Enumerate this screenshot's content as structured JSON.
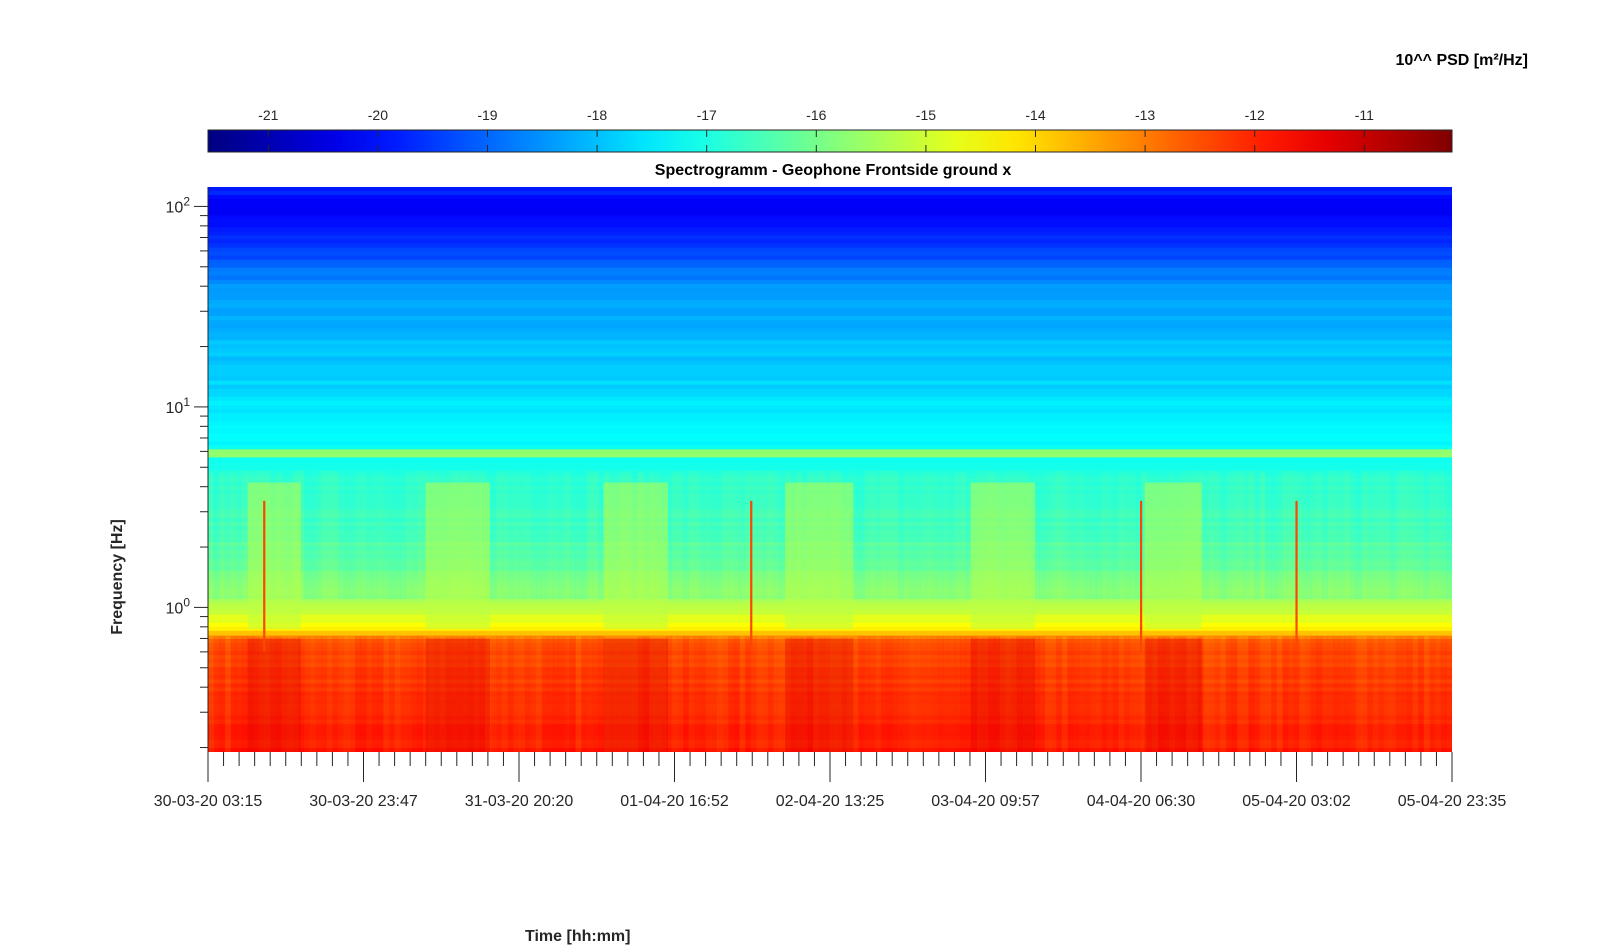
{
  "chart_data": {
    "type": "heatmap",
    "title": "Spectrogramm - Geophone Frontside ground x",
    "xlabel": "Time [hh:mm]",
    "ylabel": "Frequency [Hz]",
    "colorbar_label": "10^^ PSD [m²/Hz]",
    "colormap": "jet",
    "colorbar_position": "top",
    "color_range": [
      -21.55,
      -10.2
    ],
    "colorbar_ticks": [
      "-21",
      "-20",
      "-19",
      "-18",
      "-17",
      "-16",
      "-15",
      "-14",
      "-13",
      "-12",
      "-11"
    ],
    "y_scale": "log",
    "ylim": [
      0.19,
      125
    ],
    "y_ticks": [
      {
        "base": "10",
        "exp": "0"
      },
      {
        "base": "10",
        "exp": "1"
      },
      {
        "base": "10",
        "exp": "2"
      }
    ],
    "x_ticks": [
      "30-03-20 03:15",
      "30-03-20 23:47",
      "31-03-20 20:20",
      "01-04-20 16:52",
      "02-04-20 13:25",
      "03-04-20 09:57",
      "04-04-20 06:30",
      "05-04-20 03:02",
      "05-04-20 23:35"
    ],
    "grid": false,
    "frequency_bands": [
      {
        "hz": 125,
        "psd_log": -19.6
      },
      {
        "hz": 100,
        "psd_log": -20.3
      },
      {
        "hz": 80,
        "psd_log": -20.0
      },
      {
        "hz": 60,
        "psd_log": -19.4
      },
      {
        "hz": 40,
        "psd_log": -18.5
      },
      {
        "hz": 30,
        "psd_log": -18.3
      },
      {
        "hz": 20,
        "psd_log": -18.0
      },
      {
        "hz": 12,
        "psd_log": -17.7
      },
      {
        "hz": 8,
        "psd_log": -17.3
      },
      {
        "hz": 6.2,
        "psd_log": -17.3
      },
      {
        "hz": 5.9,
        "psd_log": -14.8
      },
      {
        "hz": 5.5,
        "psd_log": -17.2
      },
      {
        "hz": 4,
        "psd_log": -16.8
      },
      {
        "hz": 2.5,
        "psd_log": -16.5
      },
      {
        "hz": 1.6,
        "psd_log": -16.0
      },
      {
        "hz": 1.1,
        "psd_log": -15.3
      },
      {
        "hz": 0.8,
        "psd_log": -14.5
      },
      {
        "hz": 0.65,
        "psd_log": -12.6
      },
      {
        "hz": 0.4,
        "psd_log": -12.3
      },
      {
        "hz": 0.25,
        "psd_log": -11.9
      },
      {
        "hz": 0.19,
        "psd_log": -11.8
      }
    ],
    "activity_periods": [
      {
        "start": "30-03-20 08:30",
        "end": "30-03-20 15:30"
      },
      {
        "start": "31-03-20 08:00",
        "end": "31-03-20 16:30"
      },
      {
        "start": "01-04-20 07:30",
        "end": "01-04-20 16:00"
      },
      {
        "start": "02-04-20 07:30",
        "end": "02-04-20 16:30"
      },
      {
        "start": "03-04-20 08:00",
        "end": "03-04-20 16:30"
      },
      {
        "start": "04-04-20 07:00",
        "end": "04-04-20 14:30"
      }
    ],
    "spikes": [
      "30-03-20 10:40",
      "02-04-20 03:00",
      "04-04-20 06:30",
      "05-04-20 03:02"
    ]
  }
}
